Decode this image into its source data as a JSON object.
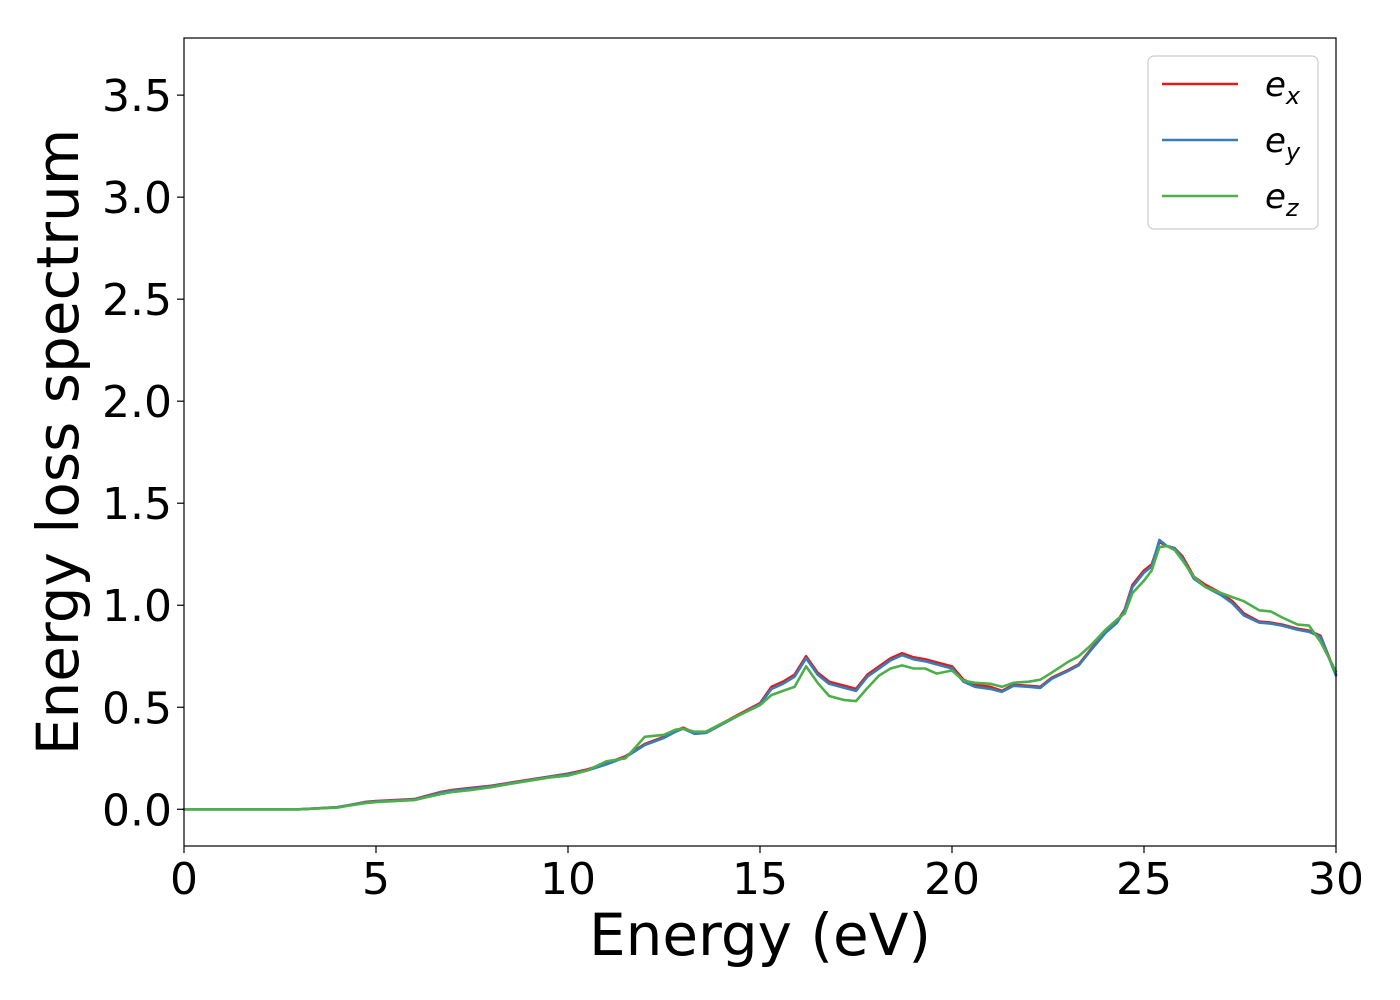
{
  "chart_data": {
    "type": "line",
    "title": "",
    "xlabel": "Energy (eV)",
    "ylabel": "Energy loss spectrum",
    "xlim": [
      0,
      30
    ],
    "ylim": [
      -0.18,
      3.78
    ],
    "xticks": [
      "0",
      "5",
      "10",
      "15",
      "20",
      "25",
      "30"
    ],
    "yticks": [
      "0.0",
      "0.5",
      "1.0",
      "1.5",
      "2.0",
      "2.5",
      "3.0",
      "3.5"
    ],
    "grid": false,
    "legend_position": "top-right",
    "series": [
      {
        "name": "e_x",
        "label_base": "e",
        "label_sub": "x",
        "color": "#e41a1c",
        "x": [
          0,
          1,
          2,
          3,
          3.5,
          4,
          4.3,
          4.7,
          5,
          5.5,
          6,
          6.3,
          6.7,
          7,
          7.5,
          8,
          8.5,
          9,
          9.5,
          10,
          10.5,
          11,
          11.5,
          12,
          12.5,
          12.8,
          13,
          13.3,
          13.6,
          14,
          14.5,
          15,
          15.3,
          15.6,
          15.9,
          16.2,
          16.5,
          16.8,
          17.2,
          17.5,
          17.8,
          18.1,
          18.4,
          18.7,
          19,
          19.3,
          19.6,
          20,
          20.3,
          20.6,
          21,
          21.3,
          21.6,
          22,
          22.3,
          22.6,
          23,
          23.3,
          23.6,
          24,
          24.3,
          24.5,
          24.7,
          25,
          25.2,
          25.4,
          25.6,
          25.8,
          26,
          26.3,
          26.6,
          27,
          27.3,
          27.6,
          28,
          28.3,
          28.6,
          29,
          29.3,
          29.6,
          30
        ],
        "y": [
          0.0,
          0.0,
          0.0,
          0.0,
          0.005,
          0.01,
          0.02,
          0.035,
          0.04,
          0.045,
          0.05,
          0.065,
          0.085,
          0.095,
          0.105,
          0.115,
          0.13,
          0.145,
          0.16,
          0.175,
          0.195,
          0.225,
          0.26,
          0.32,
          0.355,
          0.385,
          0.4,
          0.375,
          0.38,
          0.42,
          0.47,
          0.52,
          0.6,
          0.625,
          0.66,
          0.75,
          0.67,
          0.625,
          0.605,
          0.59,
          0.66,
          0.7,
          0.74,
          0.765,
          0.745,
          0.735,
          0.72,
          0.7,
          0.635,
          0.61,
          0.6,
          0.58,
          0.61,
          0.605,
          0.6,
          0.645,
          0.68,
          0.71,
          0.78,
          0.87,
          0.92,
          0.98,
          1.1,
          1.17,
          1.2,
          1.31,
          1.29,
          1.28,
          1.24,
          1.14,
          1.1,
          1.06,
          1.02,
          0.96,
          0.92,
          0.915,
          0.905,
          0.885,
          0.875,
          0.85,
          0.66
        ]
      },
      {
        "name": "e_y",
        "label_base": "e",
        "label_sub": "y",
        "color": "#377eb8",
        "x": [
          0,
          1,
          2,
          3,
          3.5,
          4,
          4.3,
          4.7,
          5,
          5.5,
          6,
          6.3,
          6.7,
          7,
          7.5,
          8,
          8.5,
          9,
          9.5,
          10,
          10.5,
          11,
          11.5,
          12,
          12.5,
          12.8,
          13,
          13.3,
          13.6,
          14,
          14.5,
          15,
          15.3,
          15.6,
          15.9,
          16.2,
          16.5,
          16.8,
          17.2,
          17.5,
          17.8,
          18.1,
          18.4,
          18.7,
          19,
          19.3,
          19.6,
          20,
          20.3,
          20.6,
          21,
          21.3,
          21.6,
          22,
          22.3,
          22.6,
          23,
          23.3,
          23.6,
          24,
          24.3,
          24.5,
          24.7,
          25,
          25.2,
          25.4,
          25.6,
          25.8,
          26,
          26.3,
          26.6,
          27,
          27.3,
          27.6,
          28,
          28.3,
          28.6,
          29,
          29.3,
          29.6,
          30
        ],
        "y": [
          0.0,
          0.0,
          0.0,
          0.0,
          0.005,
          0.01,
          0.02,
          0.033,
          0.038,
          0.043,
          0.048,
          0.062,
          0.082,
          0.092,
          0.102,
          0.112,
          0.128,
          0.143,
          0.158,
          0.172,
          0.19,
          0.22,
          0.255,
          0.315,
          0.35,
          0.38,
          0.395,
          0.37,
          0.375,
          0.415,
          0.465,
          0.515,
          0.59,
          0.615,
          0.65,
          0.74,
          0.66,
          0.615,
          0.595,
          0.58,
          0.65,
          0.69,
          0.73,
          0.755,
          0.735,
          0.725,
          0.71,
          0.69,
          0.625,
          0.6,
          0.59,
          0.575,
          0.605,
          0.6,
          0.595,
          0.64,
          0.675,
          0.705,
          0.775,
          0.865,
          0.915,
          0.975,
          1.09,
          1.16,
          1.19,
          1.32,
          1.29,
          1.28,
          1.23,
          1.13,
          1.09,
          1.05,
          1.01,
          0.95,
          0.915,
          0.91,
          0.9,
          0.88,
          0.87,
          0.845,
          0.655
        ]
      },
      {
        "name": "e_z",
        "label_base": "e",
        "label_sub": "z",
        "color": "#4daf4a",
        "x": [
          0,
          1,
          2,
          3,
          3.5,
          4,
          4.3,
          4.7,
          5,
          5.5,
          6,
          6.3,
          6.7,
          7,
          7.5,
          8,
          8.5,
          9,
          9.5,
          10,
          10.5,
          11,
          11.5,
          12,
          12.5,
          12.8,
          13,
          13.3,
          13.6,
          14,
          14.5,
          15,
          15.3,
          15.6,
          15.9,
          16.2,
          16.5,
          16.8,
          17.2,
          17.5,
          17.8,
          18.1,
          18.4,
          18.7,
          19,
          19.3,
          19.6,
          20,
          20.3,
          20.6,
          21,
          21.3,
          21.6,
          22,
          22.3,
          22.6,
          23,
          23.3,
          23.6,
          24,
          24.3,
          24.5,
          24.7,
          25,
          25.2,
          25.4,
          25.6,
          25.8,
          26,
          26.3,
          26.6,
          27,
          27.3,
          27.6,
          28,
          28.3,
          28.6,
          29,
          29.3,
          29.6,
          30
        ],
        "y": [
          0.0,
          0.0,
          0.0,
          0.0,
          0.004,
          0.008,
          0.018,
          0.03,
          0.035,
          0.04,
          0.045,
          0.058,
          0.075,
          0.085,
          0.095,
          0.108,
          0.125,
          0.14,
          0.155,
          0.165,
          0.19,
          0.235,
          0.25,
          0.355,
          0.365,
          0.39,
          0.395,
          0.38,
          0.38,
          0.42,
          0.465,
          0.51,
          0.56,
          0.58,
          0.6,
          0.7,
          0.62,
          0.555,
          0.535,
          0.53,
          0.595,
          0.655,
          0.69,
          0.705,
          0.69,
          0.69,
          0.665,
          0.68,
          0.63,
          0.62,
          0.615,
          0.6,
          0.62,
          0.625,
          0.635,
          0.67,
          0.72,
          0.75,
          0.8,
          0.88,
          0.93,
          0.96,
          1.06,
          1.12,
          1.17,
          1.285,
          1.29,
          1.27,
          1.22,
          1.14,
          1.09,
          1.06,
          1.04,
          1.02,
          0.975,
          0.97,
          0.94,
          0.905,
          0.9,
          0.82,
          0.675
        ]
      }
    ]
  }
}
